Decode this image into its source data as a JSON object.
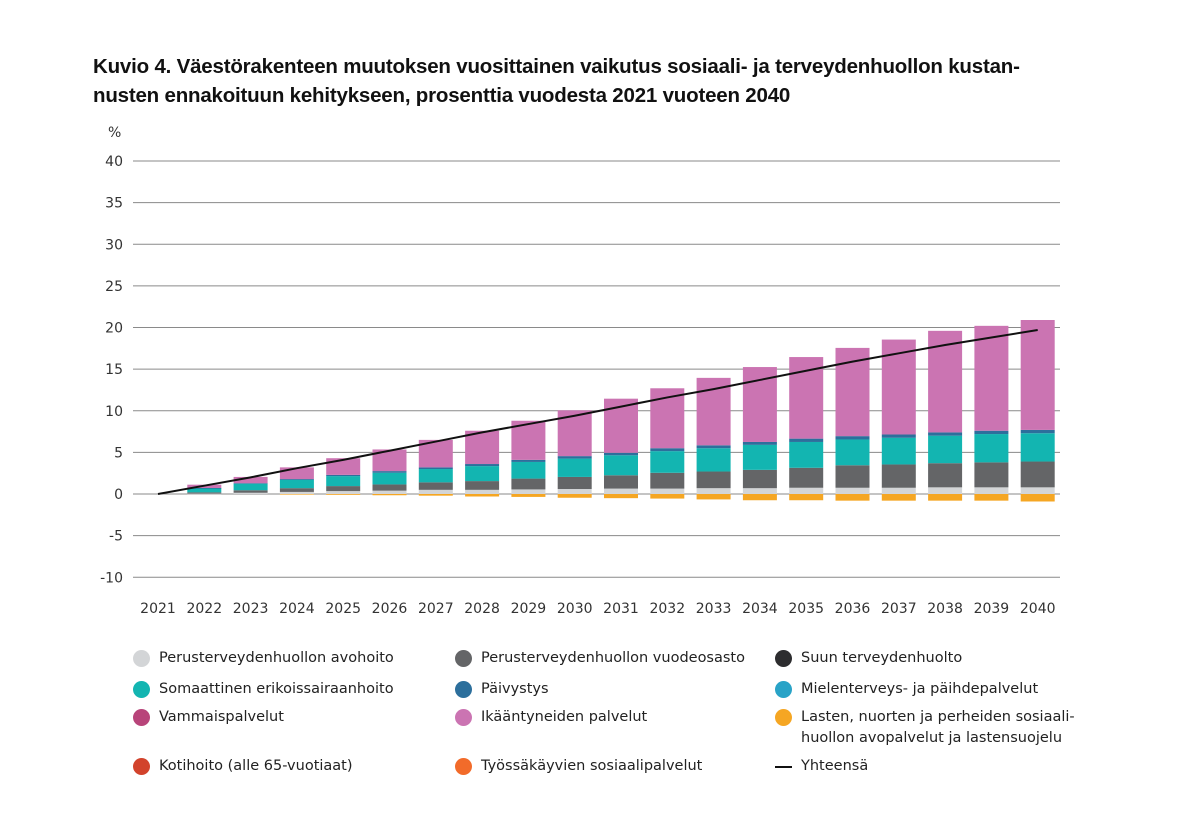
{
  "title": "Kuvio 4. Väestörakenteen muutoksen vuosittainen vaikutus sosiaali- ja terveydenhuollon kustannusten ennakoituun kehitykseen, prosenttia vuodesta 2021 vuoteen 2040",
  "title_lines": [
    "Kuvio 4. Väestörakenteen muutoksen vuosittainen vaikutus sosiaali- ja terveydenhuollon kustan-",
    "nusten ennakoituun kehitykseen, prosenttia vuodesta 2021 vuoteen 2040"
  ],
  "chart_data": {
    "type": "bar",
    "stacked": true,
    "title": "Kuvio 4. Väestörakenteen muutoksen vuosittainen vaikutus sosiaali- ja terveydenhuollon kustannusten ennakoituun kehitykseen, prosenttia vuodesta 2021 vuoteen 2040",
    "xlabel": "",
    "ylabel": "%",
    "ylim": [
      -10,
      40
    ],
    "yticks": [
      40,
      35,
      30,
      25,
      20,
      15,
      10,
      5,
      0,
      -5,
      -10
    ],
    "grid": true,
    "legend_position": "bottom",
    "categories": [
      "2021",
      "2022",
      "2023",
      "2024",
      "2025",
      "2026",
      "2027",
      "2028",
      "2029",
      "2030",
      "2031",
      "2032",
      "2033",
      "2034",
      "2035",
      "2036",
      "2037",
      "2038",
      "2039",
      "2040"
    ],
    "series": [
      {
        "name": "Perusterveydenhuollon avohoito",
        "color": "#d3d5d7",
        "values": [
          0,
          0.05,
          0.15,
          0.25,
          0.35,
          0.4,
          0.5,
          0.5,
          0.55,
          0.6,
          0.65,
          0.65,
          0.7,
          0.7,
          0.75,
          0.75,
          0.75,
          0.8,
          0.8,
          0.8
        ]
      },
      {
        "name": "Perusterveydenhuollon vuodeosasto",
        "color": "#646567",
        "values": [
          0,
          0.15,
          0.3,
          0.45,
          0.6,
          0.75,
          0.9,
          1.05,
          1.3,
          1.45,
          1.6,
          1.9,
          2.0,
          2.2,
          2.4,
          2.7,
          2.8,
          2.9,
          3.0,
          3.1
        ]
      },
      {
        "name": "Suun terveydenhuolto",
        "color": "#2d2d2f",
        "values": [
          0,
          0,
          0,
          0,
          0,
          0,
          0,
          0,
          0,
          0,
          0,
          0,
          0,
          0,
          0,
          0,
          0,
          0,
          0,
          0
        ]
      },
      {
        "name": "Somaattinen erikoissairaanhoito",
        "color": "#13b5b1",
        "values": [
          0,
          0.5,
          0.8,
          1.0,
          1.2,
          1.4,
          1.6,
          1.8,
          2.0,
          2.2,
          2.4,
          2.6,
          2.8,
          3.0,
          3.1,
          3.1,
          3.2,
          3.3,
          3.4,
          3.4
        ]
      },
      {
        "name": "Päivystys",
        "color": "#2c6f9c",
        "values": [
          0,
          0.02,
          0.05,
          0.1,
          0.15,
          0.2,
          0.2,
          0.25,
          0.25,
          0.3,
          0.3,
          0.35,
          0.35,
          0.35,
          0.4,
          0.4,
          0.4,
          0.4,
          0.4,
          0.4
        ]
      },
      {
        "name": "Mielenterveys- ja päihdepalvelut",
        "color": "#29a3c7",
        "values": [
          0,
          0,
          0,
          0,
          0,
          0,
          0,
          0,
          0,
          0,
          0,
          0,
          0,
          0,
          0,
          0,
          0,
          0,
          0,
          0
        ]
      },
      {
        "name": "Vammaispalvelut",
        "color": "#b8447a",
        "values": [
          0,
          0,
          0,
          0,
          0,
          0,
          0,
          0,
          0,
          0,
          0,
          0,
          0,
          0,
          0,
          0,
          0,
          0,
          0,
          0
        ]
      },
      {
        "name": "Ikääntyneiden palvelut",
        "color": "#cb74b2",
        "values": [
          0,
          0.4,
          0.75,
          1.4,
          2.0,
          2.6,
          3.3,
          4.0,
          4.7,
          5.5,
          6.5,
          7.2,
          8.1,
          9.0,
          9.8,
          10.6,
          11.4,
          12.2,
          12.6,
          13.2
        ]
      },
      {
        "name": "Lasten, nuorten ja perheiden sosiaalihuollon avopalvelut ja lastensuojelu",
        "color": "#f5a623",
        "values": [
          0,
          0,
          0,
          -0.05,
          -0.1,
          -0.15,
          -0.2,
          -0.3,
          -0.35,
          -0.45,
          -0.5,
          -0.55,
          -0.65,
          -0.75,
          -0.75,
          -0.8,
          -0.8,
          -0.8,
          -0.8,
          -0.9
        ]
      },
      {
        "name": "Kotihoito (alle 65-vuotiaat)",
        "color": "#d2432c",
        "values": [
          0,
          0,
          0,
          0,
          0,
          0,
          0,
          0,
          0,
          0,
          0,
          0,
          0,
          0,
          0,
          0,
          0,
          0,
          0,
          0
        ]
      },
      {
        "name": "Työssäkäyvien sosiaalipalvelut",
        "color": "#f26b2a",
        "values": [
          0,
          0,
          0,
          0,
          0,
          0,
          0,
          0,
          0,
          0,
          0,
          0,
          0,
          0,
          0,
          0,
          0,
          0,
          0,
          0
        ]
      }
    ],
    "total_line": {
      "name": "Yhteensä",
      "color": "#111111",
      "values": [
        0,
        1.0,
        2.0,
        3.1,
        4.1,
        5.2,
        6.3,
        7.4,
        8.4,
        9.4,
        10.5,
        11.6,
        12.6,
        13.7,
        14.8,
        15.9,
        16.9,
        17.9,
        18.8,
        19.7
      ]
    }
  },
  "legend": {
    "items": [
      {
        "label": "Perusterveydenhuollon avohoito",
        "color": "#d3d5d7",
        "kind": "dot"
      },
      {
        "label": "Perusterveydenhuollon vuodeosasto",
        "color": "#646567",
        "kind": "dot"
      },
      {
        "label": "Suun terveydenhuolto",
        "color": "#2d2d2f",
        "kind": "dot"
      },
      {
        "label": "Somaattinen erikoissairaanhoito",
        "color": "#13b5b1",
        "kind": "dot"
      },
      {
        "label": "Päivystys",
        "color": "#2c6f9c",
        "kind": "dot"
      },
      {
        "label": "Mielenterveys- ja päihdepalvelut",
        "color": "#29a3c7",
        "kind": "dot"
      },
      {
        "label": "Vammaispalvelut",
        "color": "#b8447a",
        "kind": "dot"
      },
      {
        "label": "Ikääntyneiden palvelut",
        "color": "#cb74b2",
        "kind": "dot"
      },
      {
        "label": "Lasten, nuorten ja perheiden sosiaali-\nhuollon avopalvelut ja lastensuojelu",
        "color": "#f5a623",
        "kind": "dot"
      },
      {
        "label": "Kotihoito (alle 65-vuotiaat)",
        "color": "#d2432c",
        "kind": "dot"
      },
      {
        "label": "Työssäkäyvien sosiaalipalvelut",
        "color": "#f26b2a",
        "kind": "dot"
      },
      {
        "label": "Yhteensä",
        "color": "#111111",
        "kind": "line"
      }
    ]
  }
}
